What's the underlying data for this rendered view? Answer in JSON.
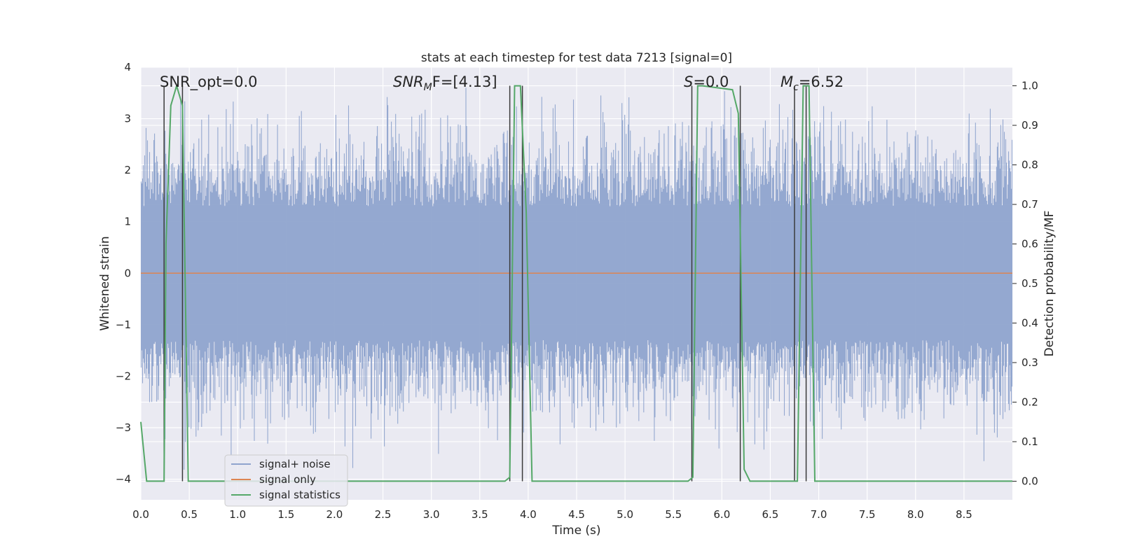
{
  "chart_data": {
    "type": "line",
    "title": "stats at each timestep for test data 7213 [signal=0]",
    "xlabel": "Time (s)",
    "ylabel": "Whitened strain",
    "y2label": "Detection probability/MF",
    "xlim": [
      0.0,
      9.0
    ],
    "ylim": [
      -4.4,
      4.0
    ],
    "y2lim": [
      -0.047,
      1.047
    ],
    "xticks": [
      "0.0",
      "0.5",
      "1.0",
      "1.5",
      "2.0",
      "2.5",
      "3.0",
      "3.5",
      "4.0",
      "4.5",
      "5.0",
      "5.5",
      "6.0",
      "6.5",
      "7.0",
      "7.5",
      "8.0",
      "8.5"
    ],
    "yticks": [
      "4",
      "3",
      "2",
      "1",
      "0",
      "−1",
      "−2",
      "−3",
      "−4"
    ],
    "y2ticks": [
      "1.0",
      "0.9",
      "0.8",
      "0.7",
      "0.6",
      "0.5",
      "0.4",
      "0.3",
      "0.2",
      "0.1",
      "0.0"
    ],
    "grid": true,
    "legend_position": "lower-left",
    "annotations": {
      "snr_opt": "SNR_opt=0.0",
      "snr_mf_main": "SNR",
      "snr_mf_sub": "M",
      "snr_mf_tail": "F=[4.13]",
      "s_main": "S",
      "s_tail": "=0.0",
      "mc_main": "M",
      "mc_sub": "c",
      "mc_tail": "=6.52"
    },
    "series": [
      {
        "name": "signal+ noise",
        "color": "#8fa4cd",
        "note": "whitened noise, approx. zero-mean, amplitude mostly within ±2.5"
      },
      {
        "name": "signal only",
        "color": "#dd8452",
        "values_const": 0.0
      },
      {
        "name": "signal statistics",
        "color": "#55a868",
        "axis": "right",
        "x": [
          0.0,
          0.06,
          0.1,
          0.2,
          0.24,
          0.26,
          0.31,
          0.37,
          0.43,
          0.49,
          0.55,
          3.76,
          3.81,
          3.86,
          3.92,
          3.98,
          4.04,
          4.1,
          5.65,
          5.7,
          5.75,
          5.8,
          6.11,
          6.17,
          6.23,
          6.29,
          6.35,
          6.72,
          6.78,
          6.84,
          6.9,
          6.96,
          7.02,
          9.0
        ],
        "values": [
          0.15,
          0.0,
          0.0,
          0.0,
          0.0,
          0.6,
          0.95,
          1.0,
          0.95,
          0.0,
          0.0,
          0.0,
          0.01,
          1.0,
          1.0,
          0.68,
          0.0,
          0.0,
          0.0,
          0.01,
          1.0,
          1.0,
          0.99,
          0.93,
          0.03,
          0.0,
          0.0,
          0.0,
          0.0,
          1.0,
          1.0,
          0.0,
          0.0,
          0.0
        ]
      }
    ],
    "vlines": [
      0.24,
      0.43,
      3.81,
      3.94,
      5.69,
      6.19,
      6.75,
      6.87
    ]
  }
}
